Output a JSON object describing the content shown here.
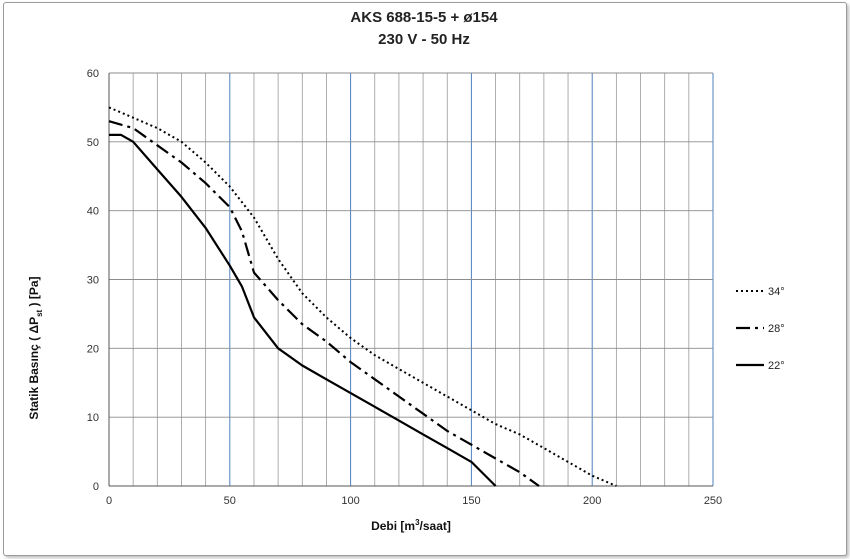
{
  "chart_data": {
    "type": "line",
    "title_line1": "AKS 688-15-5 + ø154",
    "title_line2": "230 V - 50 Hz",
    "xlabel_main": "Debi [m",
    "xlabel_sup": "3",
    "xlabel_end": "/saat]",
    "ylabel_main": "Statik Basınç ( ΔP",
    "ylabel_sub": "st",
    "ylabel_end": " ) [Pa]",
    "xlim": [
      0,
      250
    ],
    "ylim": [
      0,
      60
    ],
    "x_ticks": [
      0,
      50,
      100,
      150,
      200,
      250
    ],
    "y_ticks": [
      0,
      10,
      20,
      30,
      40,
      50,
      60
    ],
    "x_minor_step": 10,
    "grid": true,
    "legend_position": "right",
    "series": [
      {
        "name": "34°",
        "style": "dotted",
        "x": [
          0,
          10,
          20,
          30,
          40,
          50,
          60,
          70,
          80,
          90,
          100,
          110,
          120,
          130,
          140,
          150,
          160,
          170,
          180,
          190,
          200,
          210
        ],
        "y": [
          55,
          53.5,
          52,
          50,
          47,
          43.5,
          39,
          33,
          28,
          24.5,
          21.5,
          19,
          17,
          15,
          13,
          11,
          9,
          7.5,
          5.5,
          3.5,
          1.5,
          0
        ]
      },
      {
        "name": "28°",
        "style": "dashdot",
        "x": [
          0,
          10,
          20,
          30,
          40,
          50,
          55,
          60,
          70,
          80,
          90,
          100,
          110,
          120,
          130,
          140,
          150,
          160,
          170,
          178
        ],
        "y": [
          53,
          52,
          49.5,
          47,
          44,
          40.5,
          37,
          31,
          27,
          23.5,
          21,
          18,
          15.5,
          13,
          10.5,
          8,
          6,
          4,
          2,
          0
        ]
      },
      {
        "name": "22°",
        "style": "solid",
        "x": [
          0,
          5,
          10,
          20,
          30,
          40,
          50,
          55,
          60,
          70,
          80,
          90,
          100,
          110,
          120,
          130,
          140,
          150,
          160
        ],
        "y": [
          51,
          51,
          50,
          46,
          42,
          37.5,
          32,
          29,
          24.5,
          20,
          17.5,
          15.5,
          13.5,
          11.5,
          9.5,
          7.5,
          5.5,
          3.5,
          0
        ]
      }
    ]
  }
}
